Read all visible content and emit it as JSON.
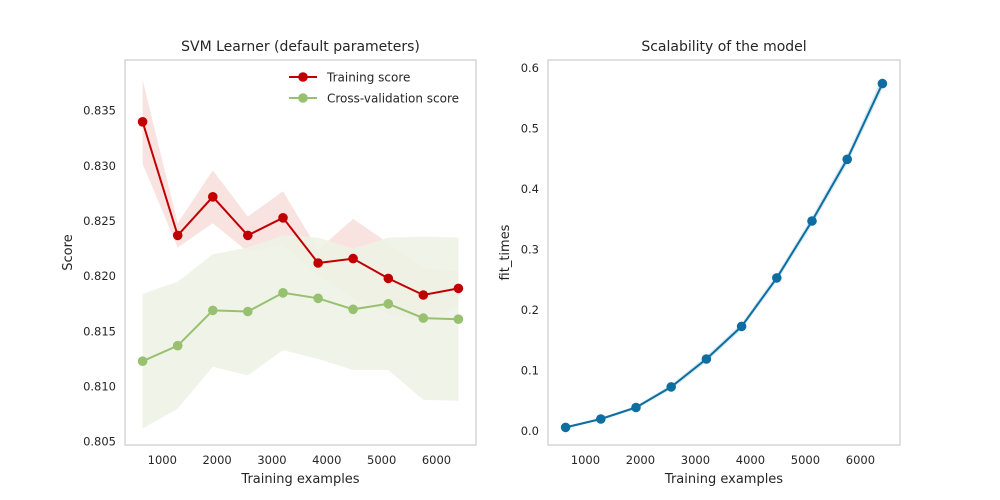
{
  "chart_data": [
    {
      "type": "line",
      "title": "SVM Learner (default parameters)",
      "xlabel": "Training examples",
      "ylabel": "Score",
      "xlim": [
        320,
        6720
      ],
      "ylim": [
        0.8047,
        0.8396
      ],
      "xticks": [
        1000,
        2000,
        3000,
        4000,
        5000,
        6000
      ],
      "yticks": [
        0.805,
        0.81,
        0.815,
        0.82,
        0.825,
        0.83,
        0.835
      ],
      "xticklabels": [
        "1000",
        "2000",
        "3000",
        "4000",
        "5000",
        "6000"
      ],
      "yticklabels": [
        "0.805",
        "0.810",
        "0.815",
        "0.820",
        "0.825",
        "0.830",
        "0.835"
      ],
      "grid": false,
      "legend_position": "top-right",
      "x": [
        640,
        1280,
        1920,
        2560,
        3200,
        3840,
        4480,
        5120,
        5760,
        6400
      ],
      "series": [
        {
          "name": "Training score",
          "color": "#c00000",
          "band_color": "#f7d7d4",
          "values": [
            0.834,
            0.8237,
            0.8272,
            0.8237,
            0.8253,
            0.8212,
            0.8216,
            0.8198,
            0.8183,
            0.8189
          ],
          "lower": [
            0.8302,
            0.8226,
            0.8248,
            0.8222,
            0.8229,
            0.82,
            0.818,
            0.8166,
            0.8159,
            0.8173
          ],
          "upper": [
            0.8378,
            0.8248,
            0.8296,
            0.8254,
            0.8277,
            0.8224,
            0.8252,
            0.823,
            0.8207,
            0.8205
          ]
        },
        {
          "name": "Cross-validation score",
          "color": "#97c170",
          "band_color": "#eef2e6",
          "values": [
            0.8123,
            0.8137,
            0.8169,
            0.8168,
            0.8185,
            0.818,
            0.817,
            0.8175,
            0.8162,
            0.8161
          ],
          "lower": [
            0.8062,
            0.808,
            0.8118,
            0.811,
            0.8133,
            0.8125,
            0.8115,
            0.8115,
            0.8088,
            0.8087
          ],
          "upper": [
            0.8184,
            0.8195,
            0.822,
            0.8226,
            0.8237,
            0.8235,
            0.8225,
            0.8235,
            0.8236,
            0.8235
          ]
        }
      ]
    },
    {
      "type": "line",
      "title": "Scalability of the model",
      "xlabel": "Training examples",
      "ylabel": "fit_times",
      "xlim": [
        320,
        6720
      ],
      "ylim": [
        -0.023,
        0.613
      ],
      "xticks": [
        1000,
        2000,
        3000,
        4000,
        5000,
        6000
      ],
      "yticks": [
        0.0,
        0.1,
        0.2,
        0.3,
        0.4,
        0.5,
        0.6
      ],
      "xticklabels": [
        "1000",
        "2000",
        "3000",
        "4000",
        "5000",
        "6000"
      ],
      "yticklabels": [
        "0.0",
        "0.1",
        "0.2",
        "0.3",
        "0.4",
        "0.5",
        "0.6"
      ],
      "grid": false,
      "x": [
        640,
        1280,
        1920,
        2560,
        3200,
        3840,
        4480,
        5120,
        5760,
        6400
      ],
      "series": [
        {
          "color": "#0e6ea1",
          "band_color": "#d2e5ef",
          "values": [
            0.006,
            0.02,
            0.039,
            0.073,
            0.119,
            0.173,
            0.253,
            0.347,
            0.449,
            0.574
          ],
          "lower": [
            0.004,
            0.018,
            0.036,
            0.069,
            0.114,
            0.168,
            0.247,
            0.34,
            0.441,
            0.565
          ],
          "upper": [
            0.008,
            0.022,
            0.042,
            0.077,
            0.124,
            0.178,
            0.259,
            0.354,
            0.457,
            0.585
          ]
        }
      ]
    }
  ]
}
